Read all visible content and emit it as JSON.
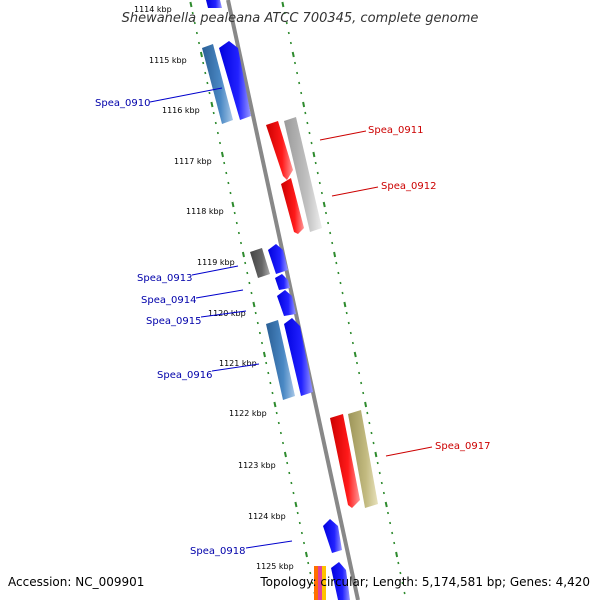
{
  "title": "Shewanella pealeana ATCC 700345, complete genome",
  "footer": {
    "accession": "Accession: NC_009901",
    "summary": "Topology: circular; Length: 5,174,581 bp; Genes: 4,420"
  },
  "colors": {
    "forward": "#0000ff",
    "forward_alt": "#3a78b4",
    "reverse": "#ff0000",
    "reverse_alt": "#b0b0b0",
    "other": "#b8b074",
    "dark": "#5a5a5a",
    "backbone": "#888888",
    "tick": "#2e8b2e",
    "label_forward": "#0000aa",
    "label_reverse": "#cc0000"
  },
  "kbp_labels": [
    "1114 kbp",
    "1115 kbp",
    "1116 kbp",
    "1117 kbp",
    "1118 kbp",
    "1119 kbp",
    "1120 kbp",
    "1121 kbp",
    "1122 kbp",
    "1123 kbp",
    "1124 kbp",
    "1125 kbp"
  ],
  "genes": [
    {
      "label": "Spea_0910",
      "strand": "forward"
    },
    {
      "label": "Spea_0911",
      "strand": "reverse"
    },
    {
      "label": "Spea_0912",
      "strand": "reverse"
    },
    {
      "label": "Spea_0913",
      "strand": "forward"
    },
    {
      "label": "Spea_0914",
      "strand": "forward"
    },
    {
      "label": "Spea_0915",
      "strand": "forward"
    },
    {
      "label": "Spea_0916",
      "strand": "forward"
    },
    {
      "label": "Spea_0917",
      "strand": "reverse"
    },
    {
      "label": "Spea_0918",
      "strand": "forward"
    }
  ]
}
